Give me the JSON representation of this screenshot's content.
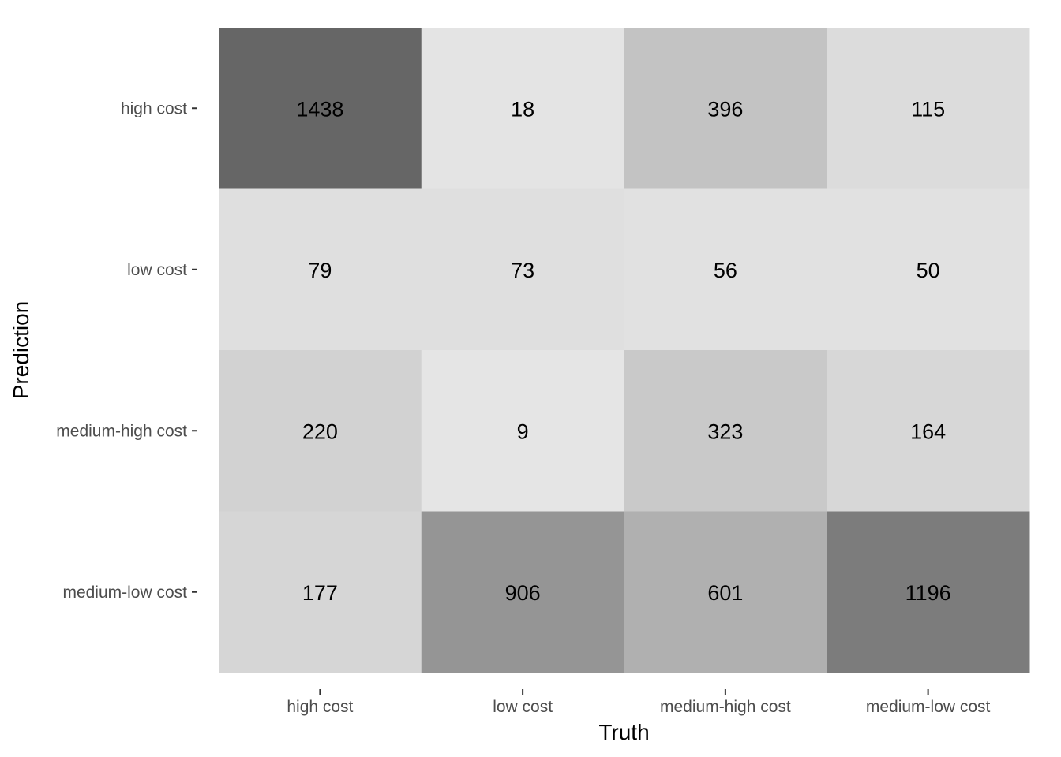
{
  "chart_data": {
    "type": "heatmap",
    "xlabel": "Truth",
    "ylabel": "Prediction",
    "x_categories": [
      "high cost",
      "low cost",
      "medium-high cost",
      "medium-low cost"
    ],
    "y_categories": [
      "high cost",
      "low cost",
      "medium-high cost",
      "medium-low cost"
    ],
    "values": [
      [
        1438,
        18,
        396,
        115
      ],
      [
        79,
        73,
        56,
        50
      ],
      [
        220,
        9,
        323,
        164
      ],
      [
        177,
        906,
        601,
        1196
      ]
    ],
    "color_scale": {
      "low": "#e5e5e5",
      "high": "#666666"
    },
    "grid": false,
    "legend": "none"
  }
}
